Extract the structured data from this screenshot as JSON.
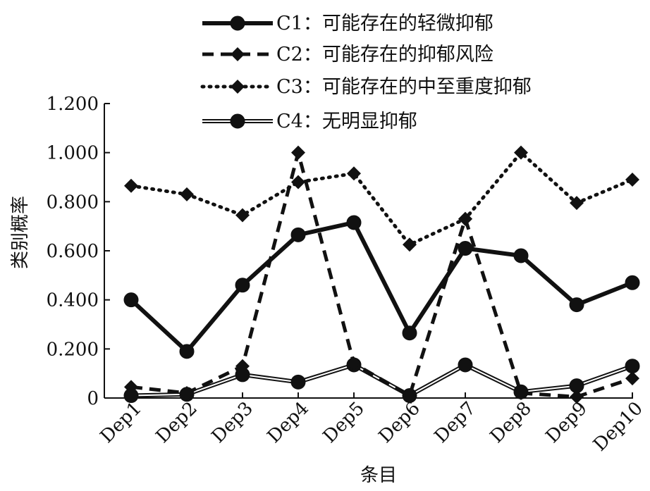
{
  "chart_data": {
    "type": "line",
    "title": "",
    "xlabel": "条目",
    "ylabel": "类别概率",
    "ylim": [
      0,
      1.2
    ],
    "yticks": [
      "0",
      "0.200",
      "0.400",
      "0.600",
      "0.800",
      "1.000",
      "1.200"
    ],
    "categories": [
      "Dep1",
      "Dep2",
      "Dep3",
      "Dep4",
      "Dep5",
      "Dep6",
      "Dep7",
      "Dep8",
      "Dep9",
      "Dep10"
    ],
    "legend_position": "top-right",
    "series": [
      {
        "name": "C1：可能存在的轻微抑郁",
        "style": "solid-bold",
        "marker": "circle",
        "values": [
          0.4,
          0.19,
          0.46,
          0.665,
          0.715,
          0.265,
          0.61,
          0.58,
          0.38,
          0.47
        ]
      },
      {
        "name": "C2：可能存在的抑郁风险",
        "style": "dashed",
        "marker": "diamond",
        "values": [
          0.045,
          0.02,
          0.13,
          1.0,
          0.14,
          0.01,
          0.73,
          0.02,
          0.005,
          0.08
        ]
      },
      {
        "name": "C3：可能存在的中至重度抑郁",
        "style": "dotted",
        "marker": "diamond",
        "values": [
          0.865,
          0.83,
          0.745,
          0.88,
          0.915,
          0.625,
          0.73,
          1.0,
          0.795,
          0.89
        ]
      },
      {
        "name": "C4：无明显抑郁",
        "style": "double",
        "marker": "circle",
        "values": [
          0.01,
          0.015,
          0.095,
          0.065,
          0.135,
          0.01,
          0.135,
          0.025,
          0.05,
          0.13
        ]
      }
    ]
  }
}
